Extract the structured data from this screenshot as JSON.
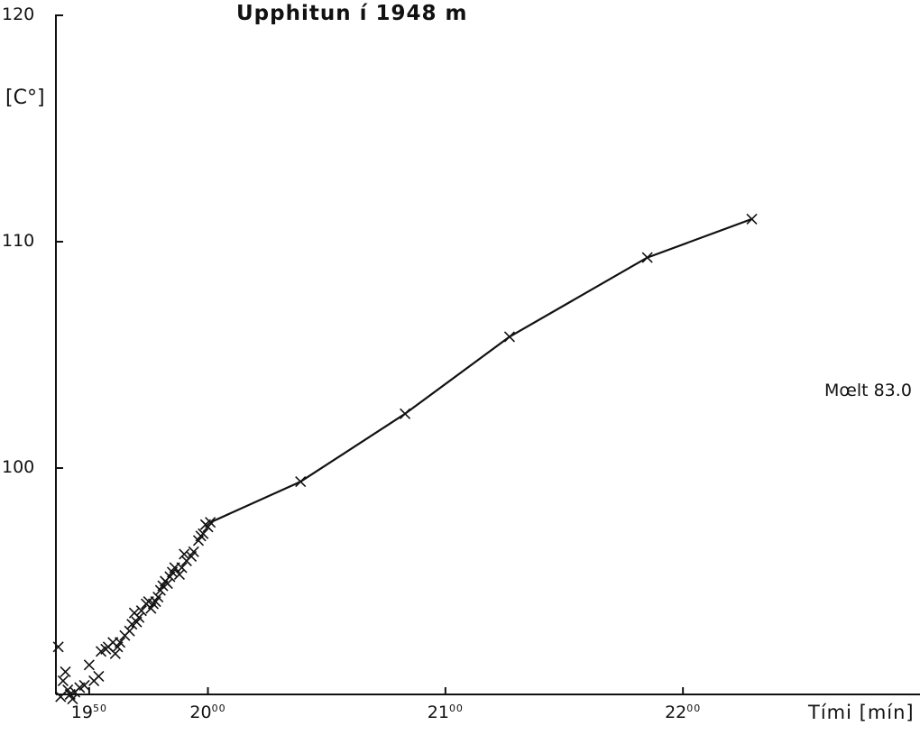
{
  "chart_data": {
    "type": "scatter",
    "title": "Upphitun í 1948 m",
    "xlabel": "Tími [mín]",
    "ylabel": "[C°]",
    "annotation": "Mœlt 83.0",
    "ylim": [
      90,
      120
    ],
    "xlim": [
      1936,
      2315
    ],
    "y_ticks": [
      {
        "value": 120,
        "label": "120"
      },
      {
        "value": 110,
        "label": "110"
      },
      {
        "value": 100,
        "label": "100"
      }
    ],
    "x_ticks": [
      {
        "value": 1950,
        "main": "19",
        "sup": "50"
      },
      {
        "value": 2000,
        "main": "20",
        "sup": "00"
      },
      {
        "value": 2100,
        "main": "21",
        "sup": "00"
      },
      {
        "value": 2200,
        "main": "22",
        "sup": "00"
      }
    ],
    "series": [
      {
        "style": "scatter",
        "points": [
          [
            1937,
            92.1
          ],
          [
            1938,
            89.9
          ],
          [
            1939,
            90.6
          ],
          [
            1940,
            91.0
          ],
          [
            1941,
            90.2
          ],
          [
            1942,
            90.0
          ],
          [
            1943,
            89.8
          ],
          [
            1944,
            90.1
          ],
          [
            1946,
            90.3
          ],
          [
            1948,
            90.4
          ],
          [
            1950,
            91.3
          ],
          [
            1952,
            90.6
          ],
          [
            1954,
            90.8
          ],
          [
            1955,
            91.9
          ],
          [
            1957,
            92.0
          ],
          [
            1958,
            92.1
          ],
          [
            1960,
            92.3
          ],
          [
            1961,
            91.8
          ],
          [
            1962,
            92.1
          ],
          [
            1963,
            92.3
          ],
          [
            1965,
            92.6
          ],
          [
            1967,
            92.8
          ],
          [
            1968,
            93.1
          ],
          [
            1969,
            93.6
          ],
          [
            1970,
            93.2
          ],
          [
            1971,
            93.4
          ],
          [
            1972,
            93.7
          ],
          [
            1974,
            94.0
          ],
          [
            1975,
            94.1
          ],
          [
            1976,
            93.8
          ],
          [
            1977,
            94.0
          ],
          [
            1978,
            94.1
          ],
          [
            1979,
            94.3
          ],
          [
            1980,
            94.6
          ],
          [
            1981,
            94.8
          ],
          [
            1982,
            95.0
          ],
          [
            1983,
            94.9
          ],
          [
            1984,
            95.2
          ],
          [
            1985,
            95.4
          ],
          [
            1986,
            95.6
          ],
          [
            1988,
            95.3
          ],
          [
            1989,
            95.6
          ],
          [
            1990,
            96.2
          ],
          [
            1991,
            95.9
          ],
          [
            1993,
            96.1
          ],
          [
            1994,
            96.3
          ],
          [
            1996,
            96.8
          ],
          [
            1997,
            97.0
          ],
          [
            1998,
            97.1
          ],
          [
            1999,
            97.5
          ],
          [
            2000,
            97.4
          ],
          [
            2001,
            97.6
          ]
        ]
      },
      {
        "style": "line",
        "points": [
          [
            2001,
            97.6
          ],
          [
            2039,
            99.4
          ],
          [
            2083,
            102.4
          ],
          [
            2127,
            105.8
          ],
          [
            2185,
            109.3
          ],
          [
            2229,
            111.0
          ]
        ]
      }
    ]
  }
}
